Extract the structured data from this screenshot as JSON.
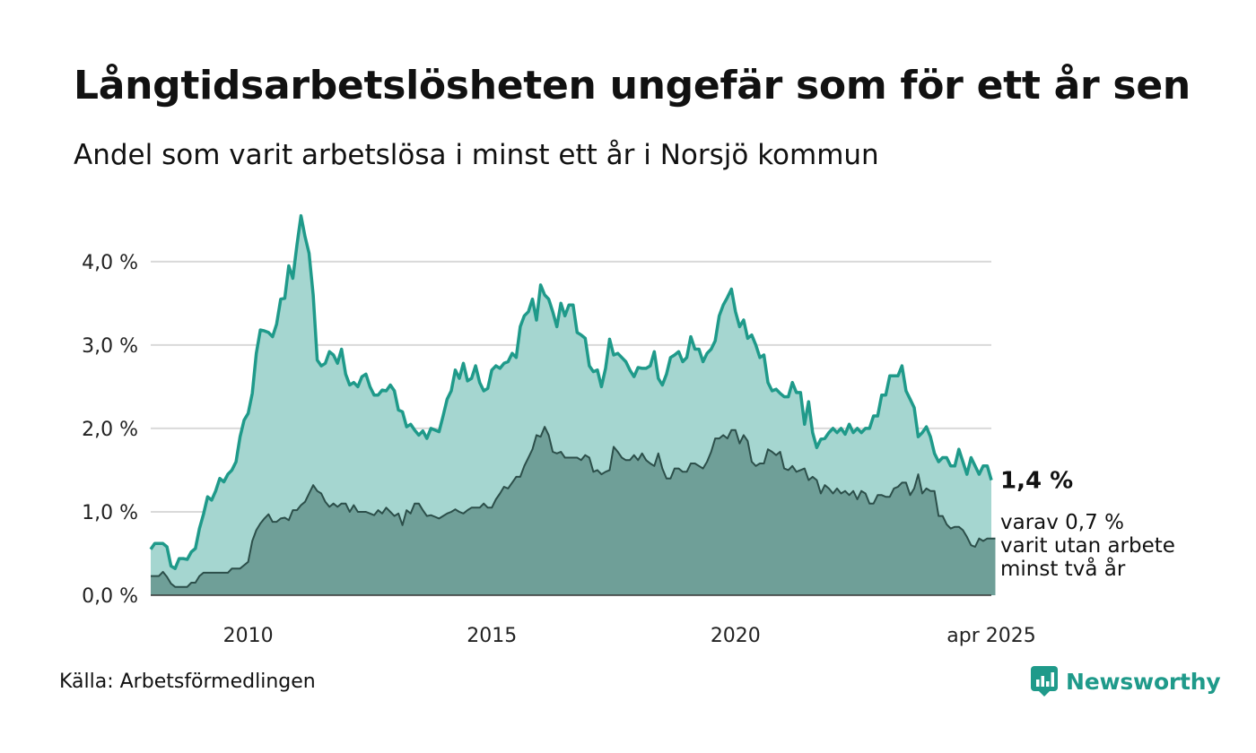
{
  "header": {
    "title": "Långtidsarbetslösheten ungefär som för ett år sen",
    "subtitle": "Andel som varit arbetslösa i minst ett år i Norsjö kommun"
  },
  "footer": {
    "source": "Källa: Arbetsförmedlingen",
    "brand": "Newsworthy",
    "brand_icon": "newsworthy-logo-icon"
  },
  "colors": {
    "main_line": "#1f9a8a",
    "main_fill": "#a5d6d0",
    "sub_line": "#2c4f4a",
    "sub_fill": "#6f9f98",
    "grid": "#d9d9d9"
  },
  "chart_data": {
    "type": "area",
    "x_start": "2008-01",
    "x_step": "month",
    "xlim": [
      "2008-01",
      "2025-04"
    ],
    "ylim": [
      0,
      4.6
    ],
    "y_ticks": [
      {
        "value": 0,
        "label": "0,0 %"
      },
      {
        "value": 1,
        "label": "1,0 %"
      },
      {
        "value": 2,
        "label": "2,0 %"
      },
      {
        "value": 3,
        "label": "3,0 %"
      },
      {
        "value": 4,
        "label": "4,0 %"
      }
    ],
    "x_ticks": [
      {
        "value": "2010-01",
        "label": "2010"
      },
      {
        "value": "2015-01",
        "label": "2015"
      },
      {
        "value": "2020-01",
        "label": "2020"
      },
      {
        "value": "2025-04",
        "label": "apr 2025"
      }
    ],
    "grid": true,
    "series": [
      {
        "name": "Arbetslösa i minst ett år",
        "end_label": "1,4 %",
        "values": [
          0.55,
          0.62,
          0.62,
          0.62,
          0.58,
          0.35,
          0.32,
          0.44,
          0.44,
          0.43,
          0.52,
          0.56,
          0.8,
          0.97,
          1.18,
          1.14,
          1.25,
          1.4,
          1.36,
          1.45,
          1.5,
          1.6,
          1.9,
          2.1,
          2.18,
          2.42,
          2.9,
          3.18,
          3.17,
          3.15,
          3.1,
          3.25,
          3.55,
          3.56,
          3.95,
          3.8,
          4.2,
          4.55,
          4.3,
          4.1,
          3.6,
          2.82,
          2.75,
          2.78,
          2.92,
          2.88,
          2.78,
          2.95,
          2.65,
          2.52,
          2.55,
          2.5,
          2.62,
          2.65,
          2.5,
          2.4,
          2.4,
          2.46,
          2.45,
          2.52,
          2.45,
          2.22,
          2.2,
          2.02,
          2.05,
          1.98,
          1.92,
          1.97,
          1.88,
          2.0,
          1.98,
          1.96,
          2.15,
          2.35,
          2.45,
          2.7,
          2.6,
          2.78,
          2.57,
          2.6,
          2.75,
          2.55,
          2.45,
          2.48,
          2.7,
          2.75,
          2.72,
          2.78,
          2.8,
          2.9,
          2.85,
          3.22,
          3.35,
          3.4,
          3.55,
          3.3,
          3.72,
          3.6,
          3.55,
          3.4,
          3.22,
          3.5,
          3.35,
          3.48,
          3.48,
          3.15,
          3.12,
          3.08,
          2.75,
          2.68,
          2.7,
          2.5,
          2.72,
          3.07,
          2.88,
          2.9,
          2.85,
          2.8,
          2.7,
          2.62,
          2.73,
          2.72,
          2.72,
          2.75,
          2.92,
          2.6,
          2.52,
          2.65,
          2.85,
          2.88,
          2.92,
          2.8,
          2.85,
          3.1,
          2.95,
          2.95,
          2.8,
          2.9,
          2.95,
          3.05,
          3.35,
          3.48,
          3.57,
          3.67,
          3.4,
          3.22,
          3.3,
          3.08,
          3.12,
          3.0,
          2.85,
          2.88,
          2.55,
          2.45,
          2.47,
          2.42,
          2.38,
          2.38,
          2.55,
          2.43,
          2.43,
          2.05,
          2.32,
          1.95,
          1.77,
          1.87,
          1.88,
          1.95,
          2.0,
          1.95,
          2.0,
          1.93,
          2.05,
          1.95,
          2.0,
          1.95,
          2.0,
          2.0,
          2.15,
          2.15,
          2.4,
          2.4,
          2.63,
          2.63,
          2.63,
          2.75,
          2.45,
          2.35,
          2.25,
          1.9,
          1.95,
          2.02,
          1.9,
          1.7,
          1.6,
          1.65,
          1.65,
          1.55,
          1.55,
          1.75,
          1.6,
          1.45,
          1.65,
          1.55,
          1.45,
          1.55,
          1.55,
          1.38
        ]
      },
      {
        "name": "varit utan arbete minst två år",
        "end_label": "varav 0,7 %",
        "end_label_lines": [
          "varav 0,7 %",
          "varit utan arbete",
          "minst två år"
        ],
        "values": [
          0.23,
          0.23,
          0.23,
          0.28,
          0.22,
          0.14,
          0.1,
          0.1,
          0.1,
          0.1,
          0.15,
          0.15,
          0.23,
          0.27,
          0.27,
          0.27,
          0.27,
          0.27,
          0.27,
          0.27,
          0.32,
          0.32,
          0.32,
          0.36,
          0.4,
          0.65,
          0.78,
          0.86,
          0.92,
          0.97,
          0.88,
          0.88,
          0.92,
          0.93,
          0.9,
          1.02,
          1.02,
          1.08,
          1.12,
          1.22,
          1.32,
          1.25,
          1.22,
          1.12,
          1.06,
          1.1,
          1.06,
          1.1,
          1.1,
          1.0,
          1.08,
          1.0,
          1.0,
          1.0,
          0.98,
          0.96,
          1.02,
          0.98,
          1.05,
          1.0,
          0.95,
          0.98,
          0.84,
          1.02,
          0.98,
          1.1,
          1.1,
          1.02,
          0.95,
          0.96,
          0.94,
          0.92,
          0.95,
          0.98,
          1.0,
          1.03,
          1.0,
          0.98,
          1.02,
          1.05,
          1.05,
          1.05,
          1.1,
          1.05,
          1.05,
          1.15,
          1.22,
          1.3,
          1.28,
          1.35,
          1.42,
          1.42,
          1.55,
          1.65,
          1.75,
          1.92,
          1.9,
          2.02,
          1.92,
          1.72,
          1.7,
          1.72,
          1.65,
          1.65,
          1.65,
          1.65,
          1.62,
          1.68,
          1.65,
          1.48,
          1.5,
          1.45,
          1.48,
          1.5,
          1.78,
          1.72,
          1.65,
          1.62,
          1.62,
          1.68,
          1.62,
          1.7,
          1.62,
          1.58,
          1.55,
          1.7,
          1.52,
          1.4,
          1.4,
          1.52,
          1.52,
          1.48,
          1.48,
          1.58,
          1.58,
          1.55,
          1.52,
          1.6,
          1.72,
          1.88,
          1.88,
          1.92,
          1.88,
          1.98,
          1.98,
          1.82,
          1.92,
          1.85,
          1.6,
          1.55,
          1.58,
          1.58,
          1.75,
          1.72,
          1.68,
          1.72,
          1.52,
          1.5,
          1.55,
          1.48,
          1.5,
          1.52,
          1.38,
          1.42,
          1.38,
          1.22,
          1.32,
          1.28,
          1.22,
          1.28,
          1.22,
          1.25,
          1.2,
          1.25,
          1.15,
          1.25,
          1.22,
          1.1,
          1.1,
          1.2,
          1.2,
          1.18,
          1.18,
          1.28,
          1.3,
          1.35,
          1.35,
          1.2,
          1.28,
          1.45,
          1.22,
          1.28,
          1.25,
          1.25,
          0.95,
          0.95,
          0.85,
          0.8,
          0.82,
          0.82,
          0.78,
          0.7,
          0.6,
          0.58,
          0.68,
          0.65,
          0.68,
          0.68,
          0.68
        ]
      }
    ]
  }
}
